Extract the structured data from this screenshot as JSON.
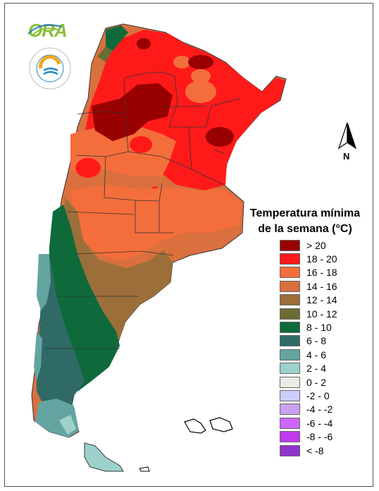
{
  "logo": {
    "text": "ORA",
    "seal_ring_text": "SERVICIO METEOROLÓGICO NACIONAL",
    "seal_bottom_text": "ARGENTINA"
  },
  "north_arrow": {
    "label": "N"
  },
  "legend": {
    "title_line1": "Temperatura mínima",
    "title_line2": "de la semana (°C)",
    "items": [
      {
        "label": "> 20",
        "color": "#990000"
      },
      {
        "label": "18 - 20",
        "color": "#ff1a1a"
      },
      {
        "label": "16 - 18",
        "color": "#f46e3c"
      },
      {
        "label": "14 - 16",
        "color": "#d9703e"
      },
      {
        "label": "12 - 14",
        "color": "#9c6f3a"
      },
      {
        "label": "10 - 12",
        "color": "#6b6b34"
      },
      {
        "label": "8 - 10",
        "color": "#0e6a3a"
      },
      {
        "label": "6 - 8",
        "color": "#2f6a66"
      },
      {
        "label": "4 - 6",
        "color": "#64a4a0"
      },
      {
        "label": "2 - 4",
        "color": "#9ed1cc"
      },
      {
        "label": "0 - 2",
        "color": "#ebebe6"
      },
      {
        "label": "-2 - 0",
        "color": "#cccdff"
      },
      {
        "label": "-4 - -2",
        "color": "#c9a1f2"
      },
      {
        "label": "-6 - -4",
        "color": "#cc66ff"
      },
      {
        "label": "-8 - -6",
        "color": "#c03aef"
      },
      {
        "label": "< -8",
        "color": "#9033cc"
      }
    ]
  }
}
